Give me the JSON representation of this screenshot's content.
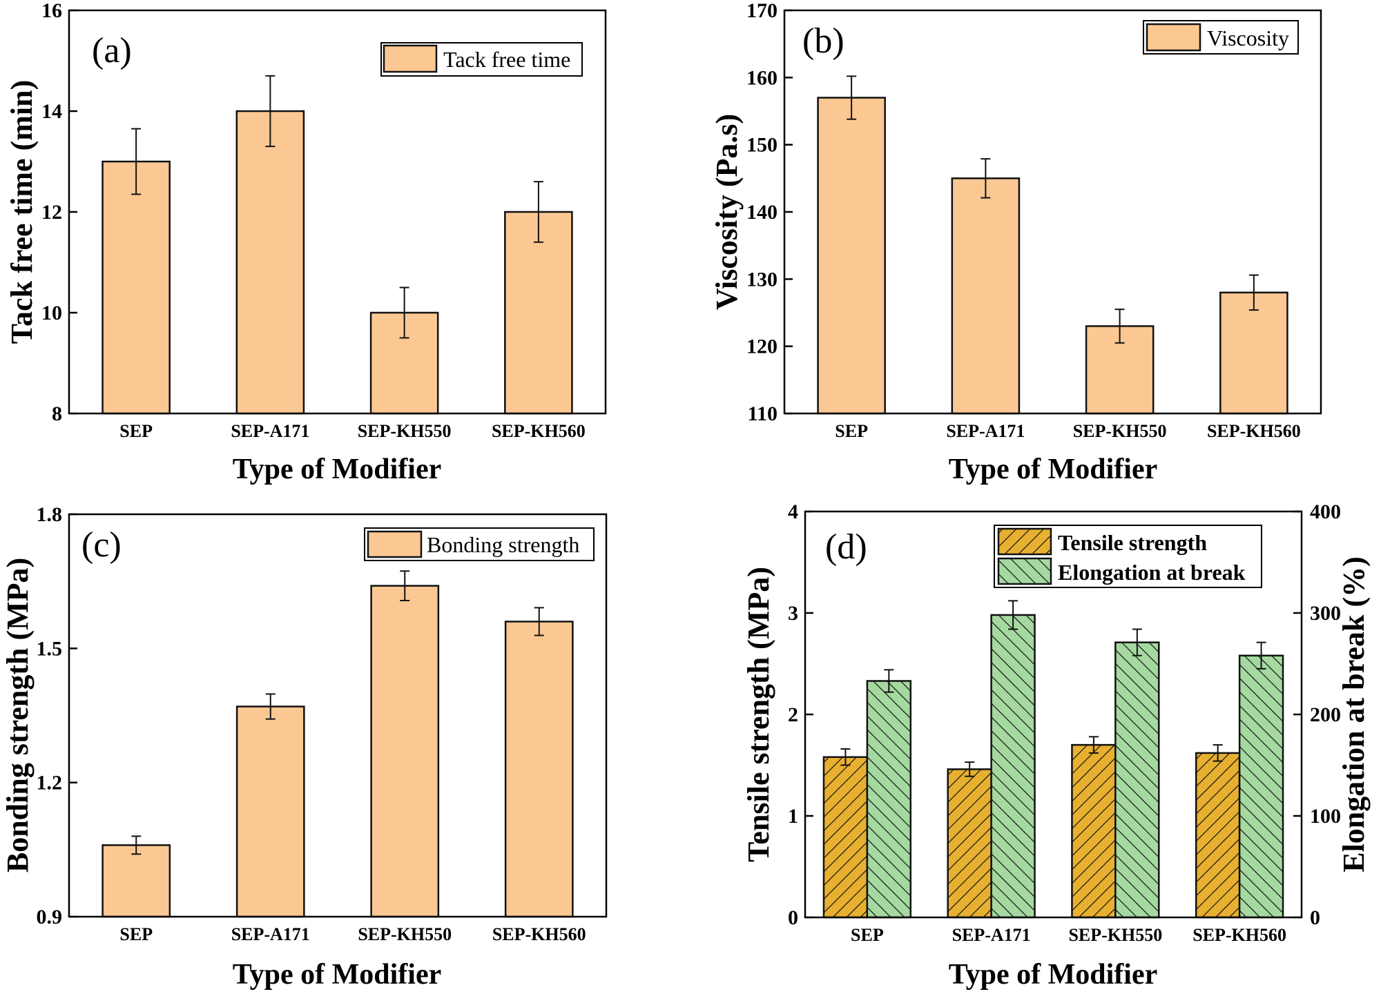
{
  "figure": {
    "colors": {
      "peach_fill": "#fbc893",
      "tensile_fill": "#e8b030",
      "elongation_fill": "#a5d9a0",
      "stroke": "#111111"
    }
  },
  "chart_data": [
    {
      "id": "a",
      "type": "bar",
      "panel_label": "(a)",
      "title": "",
      "xlabel": "Type of Modifier",
      "ylabel": "Tack free time (min)",
      "categories": [
        "SEP",
        "SEP-A171",
        "SEP-KH550",
        "SEP-KH560"
      ],
      "ylim": [
        8,
        16
      ],
      "yticks": [
        8,
        10,
        12,
        14,
        16
      ],
      "ytick_labels": [
        "8",
        "10",
        "12",
        "14",
        "16"
      ],
      "grid": false,
      "legend_position": "top-right",
      "series": [
        {
          "name": "Tack free time",
          "values": [
            13,
            14,
            10,
            12
          ],
          "errors": [
            0.65,
            0.7,
            0.5,
            0.6
          ],
          "hatch": "none"
        }
      ]
    },
    {
      "id": "b",
      "type": "bar",
      "panel_label": "(b)",
      "title": "",
      "xlabel": "Type of Modifier",
      "ylabel": "Viscosity (Pa.s)",
      "categories": [
        "SEP",
        "SEP-A171",
        "SEP-KH550",
        "SEP-KH560"
      ],
      "ylim": [
        110,
        170
      ],
      "yticks": [
        110,
        120,
        130,
        140,
        150,
        160,
        170
      ],
      "ytick_labels": [
        "110",
        "120",
        "130",
        "140",
        "150",
        "160",
        "170"
      ],
      "grid": false,
      "legend_position": "top-right",
      "series": [
        {
          "name": "Viscosity",
          "values": [
            157,
            145,
            123,
            128
          ],
          "errors": [
            3.2,
            2.9,
            2.5,
            2.6
          ],
          "hatch": "none"
        }
      ]
    },
    {
      "id": "c",
      "type": "bar",
      "panel_label": "(c)",
      "title": "",
      "xlabel": "Type of Modifier",
      "ylabel": "Bonding strength (MPa)",
      "categories": [
        "SEP",
        "SEP-A171",
        "SEP-KH550",
        "SEP-KH560"
      ],
      "ylim": [
        0.9,
        1.8
      ],
      "yticks": [
        0.9,
        1.2,
        1.5,
        1.8
      ],
      "ytick_labels": [
        "0.9",
        "1.2",
        "1.5",
        "1.8"
      ],
      "grid": false,
      "legend_position": "top-right",
      "series": [
        {
          "name": "Bonding strength",
          "values": [
            1.06,
            1.37,
            1.64,
            1.56
          ],
          "errors": [
            0.02,
            0.028,
            0.033,
            0.031
          ],
          "hatch": "none"
        }
      ]
    },
    {
      "id": "d",
      "type": "bar",
      "panel_label": "(d)",
      "title": "",
      "xlabel": "Type of Modifier",
      "ylabel": "Tensile strength (MPa)",
      "ylabel_right": "Elongation at break (%)",
      "categories": [
        "SEP",
        "SEP-A171",
        "SEP-KH550",
        "SEP-KH560"
      ],
      "ylim": [
        0,
        4
      ],
      "yticks": [
        0,
        1,
        2,
        3,
        4
      ],
      "ytick_labels": [
        "0",
        "1",
        "2",
        "3",
        "4"
      ],
      "ylim_right": [
        0,
        400
      ],
      "yticks_right": [
        0,
        100,
        200,
        300,
        400
      ],
      "ytick_labels_right": [
        "0",
        "100",
        "200",
        "300",
        "400"
      ],
      "grid": false,
      "legend_position": "top-right",
      "series": [
        {
          "name": "Tensile strength",
          "axis": "left",
          "values": [
            1.58,
            1.46,
            1.7,
            1.62
          ],
          "errors": [
            0.08,
            0.07,
            0.08,
            0.08
          ],
          "hatch": "backslash"
        },
        {
          "name": "Elongation at break",
          "axis": "right",
          "values": [
            233,
            298,
            271,
            258
          ],
          "errors": [
            11,
            14,
            13,
            13
          ],
          "hatch": "slash"
        }
      ]
    }
  ]
}
